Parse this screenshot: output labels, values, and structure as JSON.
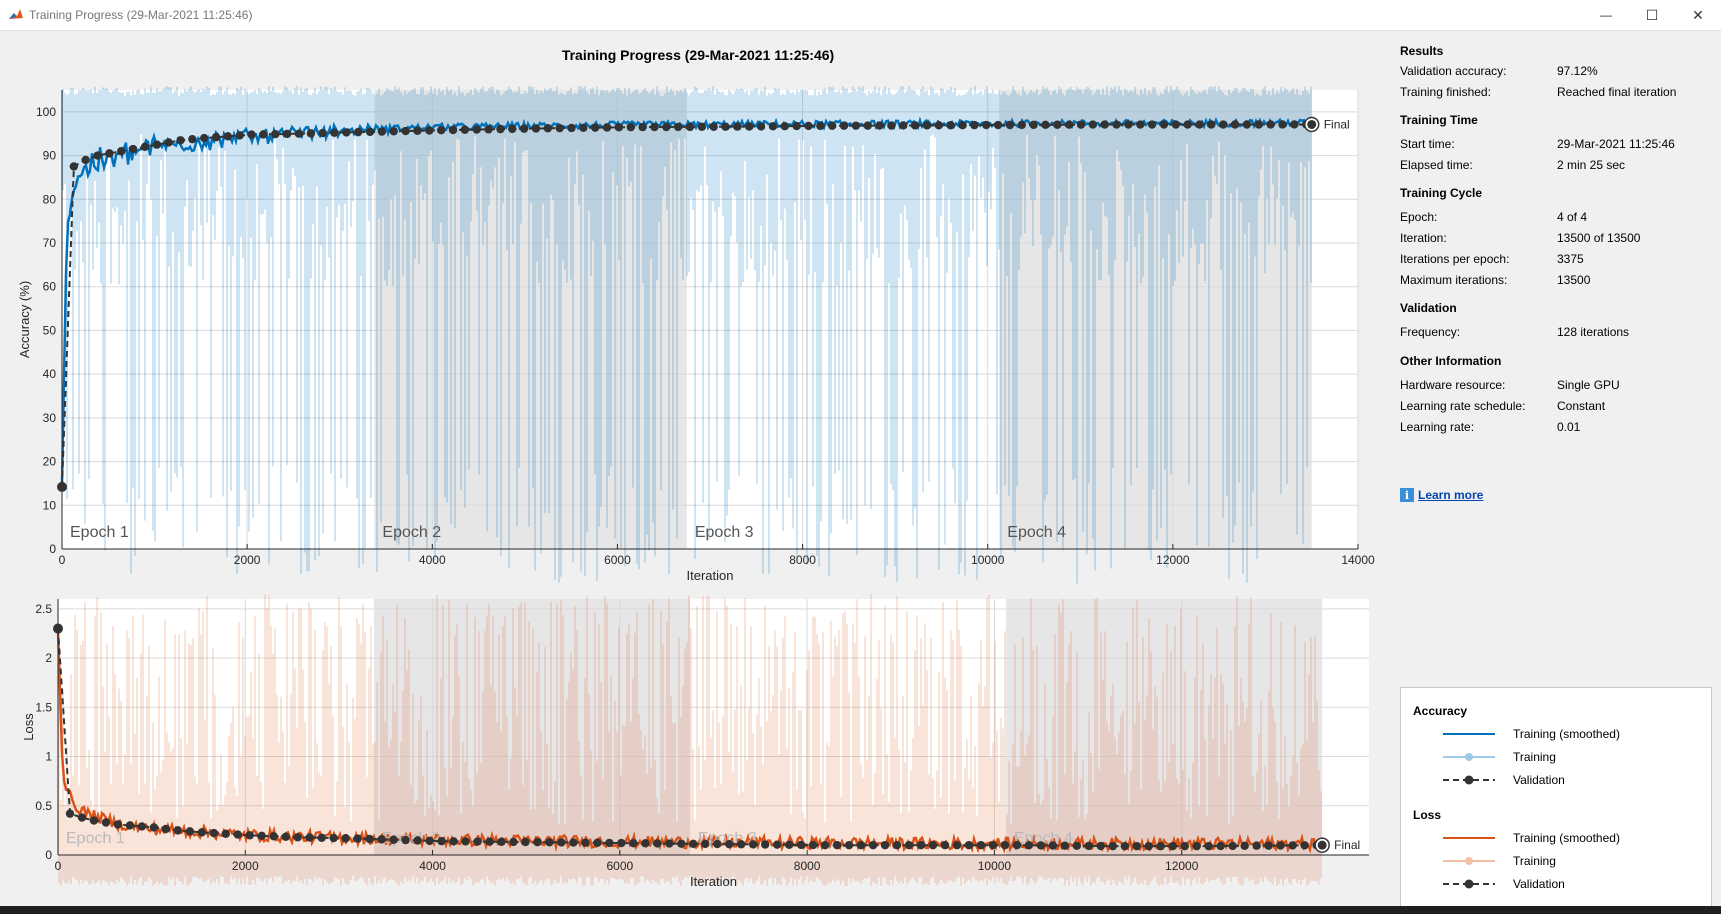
{
  "window": {
    "title": "Training Progress (29-Mar-2021 11:25:46)",
    "minimize_glyph": "—",
    "maximize_glyph": "☐",
    "close_glyph": "✕"
  },
  "plot_title": "Training Progress (29-Mar-2021 11:25:46)",
  "info_panel": {
    "sections": [
      {
        "heading": "Results",
        "rows": [
          {
            "label": "Validation accuracy:",
            "value": "97.12%"
          },
          {
            "label": "Training finished:",
            "value": "Reached final iteration"
          }
        ]
      },
      {
        "heading": "Training Time",
        "rows": [
          {
            "label": "Start time:",
            "value": "29-Mar-2021 11:25:46"
          },
          {
            "label": "Elapsed time:",
            "value": "2 min 25 sec"
          }
        ]
      },
      {
        "heading": "Training Cycle",
        "rows": [
          {
            "label": "Epoch:",
            "value": "4 of 4"
          },
          {
            "label": "Iteration:",
            "value": "13500 of 13500"
          },
          {
            "label": "Iterations per epoch:",
            "value": "3375"
          },
          {
            "label": "Maximum iterations:",
            "value": "13500"
          }
        ]
      },
      {
        "heading": "Validation",
        "rows": [
          {
            "label": "Frequency:",
            "value": "128 iterations"
          }
        ]
      },
      {
        "heading": "Other Information",
        "rows": [
          {
            "label": "Hardware resource:",
            "value": "Single GPU"
          },
          {
            "label": "Learning rate schedule:",
            "value": "Constant"
          },
          {
            "label": "Learning rate:",
            "value": "0.01"
          }
        ]
      }
    ],
    "learn_more": "Learn more",
    "info_icon_glyph": "i"
  },
  "legend": {
    "accuracy_heading": "Accuracy",
    "loss_heading": "Loss",
    "training_smoothed": "Training (smoothed)",
    "training": "Training",
    "validation": "Validation"
  },
  "colors": {
    "accuracy_smoothed": "#0072bd",
    "accuracy_raw": "#9ccae8",
    "loss_smoothed": "#d95319",
    "loss_raw": "#f3bfa6",
    "validation": "#333333",
    "epoch_shade": "#e6e6e6"
  },
  "chart_data": [
    {
      "type": "line",
      "ylabel": "Accuracy (%)",
      "xlabel": "Iteration",
      "xlim": [
        0,
        14000
      ],
      "ylim": [
        0,
        105
      ],
      "x_ticks": [
        0,
        2000,
        4000,
        6000,
        8000,
        10000,
        12000,
        14000
      ],
      "y_ticks": [
        0,
        10,
        20,
        30,
        40,
        50,
        60,
        70,
        80,
        90,
        100
      ],
      "grid": true,
      "epochs": [
        "Epoch 1",
        "Epoch 2",
        "Epoch 3",
        "Epoch 4"
      ],
      "iterations_per_epoch": 3375,
      "final_label": "Final",
      "final": {
        "x": 13500,
        "y": 97.12
      },
      "smoothed": {
        "x": [
          0,
          50,
          150,
          300,
          600,
          1000,
          2000,
          3000,
          4000,
          6000,
          8000,
          10000,
          12000,
          13500
        ],
        "y": [
          14,
          75,
          86,
          89,
          91,
          93,
          95,
          96,
          96.5,
          97,
          97.2,
          97.3,
          97.4,
          97.5
        ]
      },
      "validation": {
        "x": [
          0,
          64,
          128,
          256,
          384,
          512,
          640,
          768,
          896,
          1024,
          1280,
          1536,
          2048,
          2560,
          3072,
          4096,
          5120,
          6144,
          7168,
          8192,
          9216,
          10240,
          11264,
          12288,
          13500
        ],
        "y": [
          14.2,
          86.5,
          87.5,
          89,
          90,
          90.5,
          91,
          91.5,
          92,
          92.5,
          93.5,
          94,
          94.8,
          95,
          95.3,
          95.8,
          96.2,
          96.5,
          96.6,
          96.8,
          96.9,
          97,
          97.1,
          97.1,
          97.12
        ]
      }
    },
    {
      "type": "line",
      "ylabel": "Loss",
      "xlabel": "Iteration",
      "xlim": [
        0,
        14000
      ],
      "ylim": [
        0,
        2.6
      ],
      "x_ticks": [
        0,
        2000,
        4000,
        6000,
        8000,
        10000,
        12000
      ],
      "y_ticks": [
        0,
        0.5,
        1,
        1.5,
        2,
        2.5
      ],
      "grid": true,
      "epochs": [
        "Epoch 1",
        "Epoch 2",
        "Epoch 3",
        "Epoch 4"
      ],
      "iterations_per_epoch": 3375,
      "final_label": "Final",
      "final": {
        "x": 13500,
        "y": 0.1
      },
      "smoothed": {
        "x": [
          0,
          50,
          150,
          300,
          600,
          1000,
          2000,
          3000,
          4000,
          6000,
          8000,
          10000,
          12000,
          13500
        ],
        "y": [
          2.3,
          0.8,
          0.5,
          0.4,
          0.3,
          0.24,
          0.18,
          0.15,
          0.13,
          0.11,
          0.1,
          0.09,
          0.09,
          0.09
        ]
      },
      "validation": {
        "x": [
          0,
          64,
          128,
          256,
          384,
          512,
          640,
          768,
          896,
          1024,
          1280,
          1536,
          2048,
          2560,
          3072,
          4096,
          5120,
          6144,
          7168,
          8192,
          9216,
          10240,
          11264,
          12288,
          13500
        ],
        "y": [
          2.3,
          0.48,
          0.42,
          0.38,
          0.35,
          0.33,
          0.31,
          0.3,
          0.29,
          0.28,
          0.25,
          0.23,
          0.2,
          0.18,
          0.17,
          0.14,
          0.13,
          0.12,
          0.11,
          0.1,
          0.1,
          0.1,
          0.09,
          0.09,
          0.1
        ]
      }
    }
  ]
}
